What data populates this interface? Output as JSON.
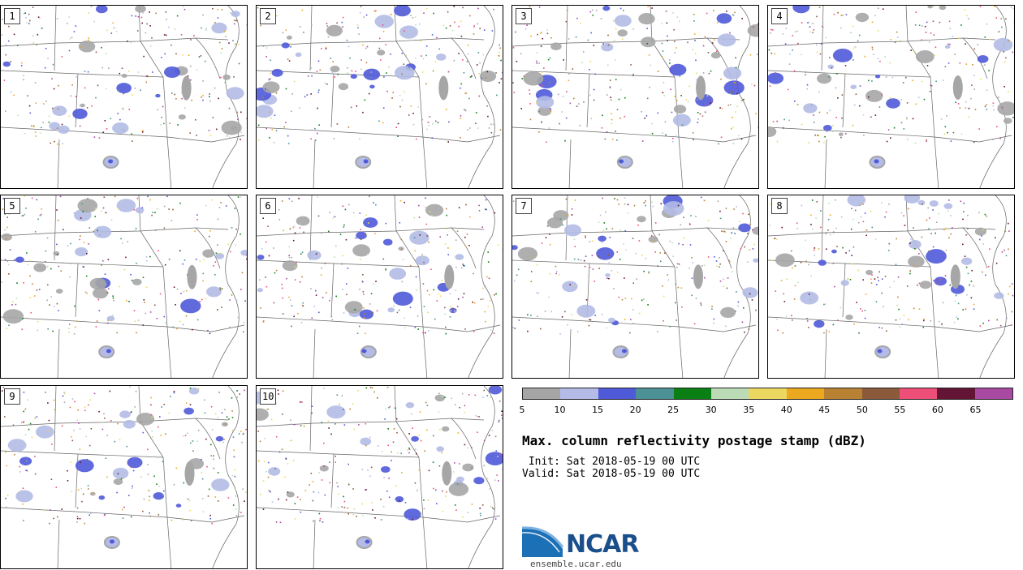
{
  "panels": [
    "1",
    "2",
    "3",
    "4",
    "5",
    "6",
    "7",
    "8",
    "9",
    "10"
  ],
  "colorbar": {
    "ticks": [
      "5",
      "10",
      "15",
      "20",
      "25",
      "30",
      "35",
      "40",
      "45",
      "50",
      "55",
      "60",
      "65"
    ],
    "colors": [
      "#a6a6a6",
      "#b3bbe6",
      "#4f5ad8",
      "#4b9196",
      "#0a7f14",
      "#bcdcb8",
      "#ecd860",
      "#eca81f",
      "#b98233",
      "#8b5a3a",
      "#ee4f78",
      "#641434",
      "#a84aa2"
    ]
  },
  "title": "Max. column reflectivity postage stamp (dBZ)",
  "init": " Init: Sat 2018-05-19 00 UTC",
  "valid": "Valid: Sat 2018-05-19 00 UTC",
  "logo": {
    "text": "NCAR",
    "site": "ensemble.ucar.edu"
  }
}
